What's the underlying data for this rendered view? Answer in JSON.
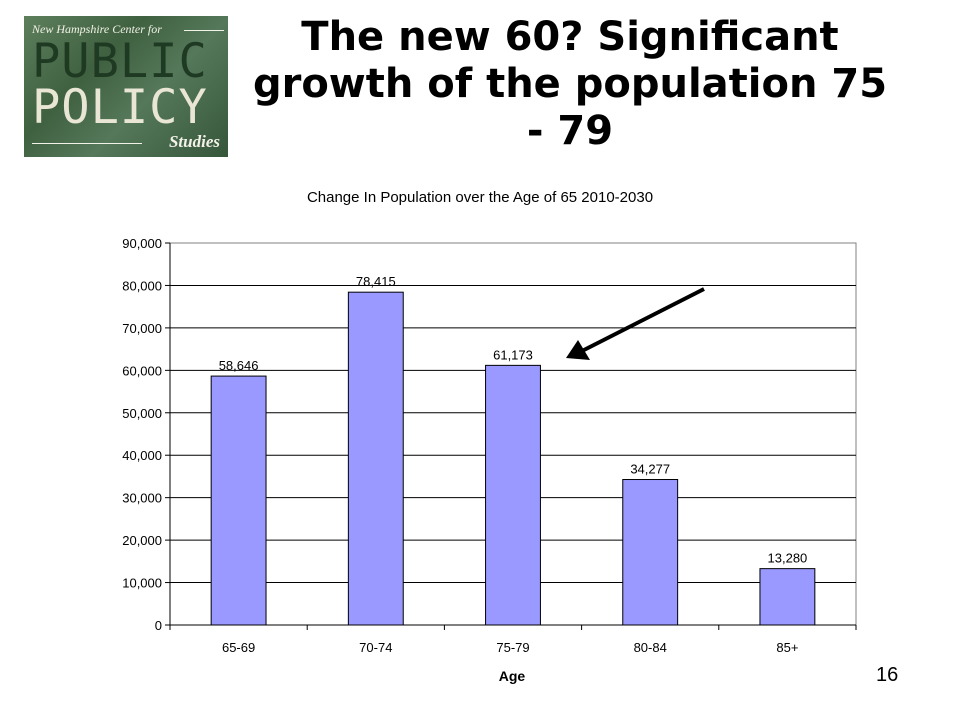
{
  "slide": {
    "title": "The new 60?  Significant growth of the population 75 - 79",
    "page_number": "16"
  },
  "logo": {
    "line1": "New Hampshire Center for",
    "word1": "PUBLIC",
    "word2": "POLICY",
    "line3": "Studies"
  },
  "chart_data": {
    "type": "bar",
    "title": "Change In Population over the Age of 65 2010-2030",
    "xlabel": "Age",
    "ylabel": "",
    "categories": [
      "65-69",
      "70-74",
      "75-79",
      "80-84",
      "85+"
    ],
    "values": [
      58646,
      78415,
      61173,
      34277,
      13280
    ],
    "value_labels": [
      "58,646",
      "78,415",
      "61,173",
      "34,277",
      "13,280"
    ],
    "ylim": [
      0,
      90000
    ],
    "yticks": [
      0,
      10000,
      20000,
      30000,
      40000,
      50000,
      60000,
      70000,
      80000,
      90000
    ],
    "ytick_labels": [
      "0",
      "10,000",
      "20,000",
      "30,000",
      "40,000",
      "50,000",
      "60,000",
      "70,000",
      "80,000",
      "90,000"
    ],
    "grid": true,
    "bar_color": "#9999ff",
    "legend": "none",
    "annotation": {
      "type": "arrow",
      "points_to": "75-79"
    }
  }
}
